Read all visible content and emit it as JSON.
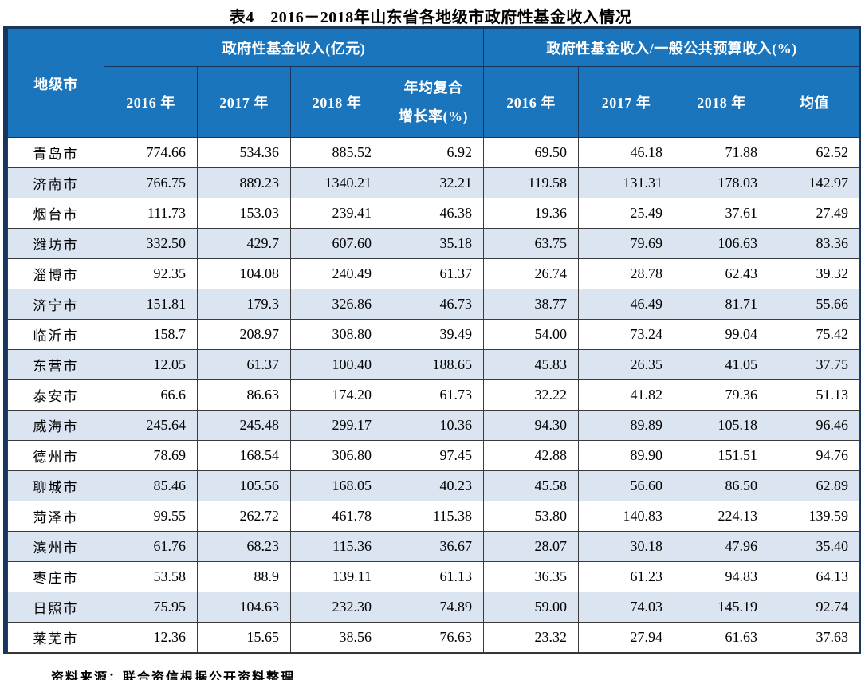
{
  "colors": {
    "header_bg": "#1b75bc",
    "header_text": "#ffffff",
    "alt_row_bg": "#dbe4f1",
    "grid_line": "#3b3b3b",
    "outer_border": "#17365d",
    "body_text": "#000000"
  },
  "header": {
    "city": "地级市",
    "group_income": "政府性基金收入(亿元)",
    "group_ratio": "政府性基金收入/一般公共预算收入(%)",
    "y2016": "2016 年",
    "y2017": "2017 年",
    "y2018": "2018 年",
    "cagr_line1": "年均复合",
    "cagr_line2": "增长率(%)",
    "mean": "均值"
  },
  "chart_data": {
    "type": "table",
    "title": "表4　2016－2018年山东省各地级市政府性基金收入情况",
    "column_groups": [
      {
        "label": "政府性基金收入(亿元)",
        "columns": [
          1,
          2,
          3,
          4
        ]
      },
      {
        "label": "政府性基金收入/一般公共预算收入(%)",
        "columns": [
          5,
          6,
          7,
          8
        ]
      }
    ],
    "columns": [
      "地级市",
      "2016年",
      "2017年",
      "2018年",
      "年均复合增长率(%)",
      "2016年",
      "2017年",
      "2018年",
      "均值"
    ],
    "rows": [
      [
        "青岛市",
        "774.66",
        "534.36",
        "885.52",
        "6.92",
        "69.50",
        "46.18",
        "71.88",
        "62.52"
      ],
      [
        "济南市",
        "766.75",
        "889.23",
        "1340.21",
        "32.21",
        "119.58",
        "131.31",
        "178.03",
        "142.97"
      ],
      [
        "烟台市",
        "111.73",
        "153.03",
        "239.41",
        "46.38",
        "19.36",
        "25.49",
        "37.61",
        "27.49"
      ],
      [
        "潍坊市",
        "332.50",
        "429.7",
        "607.60",
        "35.18",
        "63.75",
        "79.69",
        "106.63",
        "83.36"
      ],
      [
        "淄博市",
        "92.35",
        "104.08",
        "240.49",
        "61.37",
        "26.74",
        "28.78",
        "62.43",
        "39.32"
      ],
      [
        "济宁市",
        "151.81",
        "179.3",
        "326.86",
        "46.73",
        "38.77",
        "46.49",
        "81.71",
        "55.66"
      ],
      [
        "临沂市",
        "158.7",
        "208.97",
        "308.80",
        "39.49",
        "54.00",
        "73.24",
        "99.04",
        "75.42"
      ],
      [
        "东营市",
        "12.05",
        "61.37",
        "100.40",
        "188.65",
        "45.83",
        "26.35",
        "41.05",
        "37.75"
      ],
      [
        "泰安市",
        "66.6",
        "86.63",
        "174.20",
        "61.73",
        "32.22",
        "41.82",
        "79.36",
        "51.13"
      ],
      [
        "威海市",
        "245.64",
        "245.48",
        "299.17",
        "10.36",
        "94.30",
        "89.89",
        "105.18",
        "96.46"
      ],
      [
        "德州市",
        "78.69",
        "168.54",
        "306.80",
        "97.45",
        "42.88",
        "89.90",
        "151.51",
        "94.76"
      ],
      [
        "聊城市",
        "85.46",
        "105.56",
        "168.05",
        "40.23",
        "45.58",
        "56.60",
        "86.50",
        "62.89"
      ],
      [
        "菏泽市",
        "99.55",
        "262.72",
        "461.78",
        "115.38",
        "53.80",
        "140.83",
        "224.13",
        "139.59"
      ],
      [
        "滨州市",
        "61.76",
        "68.23",
        "115.36",
        "36.67",
        "28.07",
        "30.18",
        "47.96",
        "35.40"
      ],
      [
        "枣庄市",
        "53.58",
        "88.9",
        "139.11",
        "61.13",
        "36.35",
        "61.23",
        "94.83",
        "64.13"
      ],
      [
        "日照市",
        "75.95",
        "104.63",
        "232.30",
        "74.89",
        "59.00",
        "74.03",
        "145.19",
        "92.74"
      ],
      [
        "莱芜市",
        "12.36",
        "15.65",
        "38.56",
        "76.63",
        "23.32",
        "27.94",
        "61.63",
        "37.63"
      ]
    ],
    "source": "资料来源：联合资信根据公开资料整理"
  }
}
